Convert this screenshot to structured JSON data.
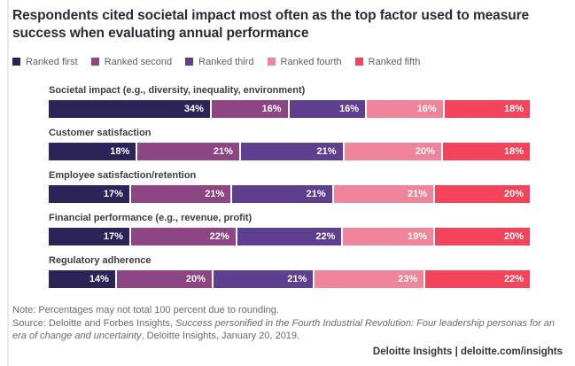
{
  "header": {
    "title": "Respondents cited societal impact most often as the top factor used to measure success when evaluating annual performance"
  },
  "legend": {
    "items": [
      {
        "label": "Ranked first",
        "color": "#2c2358"
      },
      {
        "label": "Ranked second",
        "color": "#8e4584"
      },
      {
        "label": "Ranked third",
        "color": "#5e3e8e"
      },
      {
        "label": "Ranked fourth",
        "color": "#f0849b"
      },
      {
        "label": "Ranked fifth",
        "color": "#f2455c"
      }
    ]
  },
  "chart_data": {
    "type": "bar",
    "orientation": "horizontal",
    "stacked": true,
    "unit": "%",
    "title": "Respondents cited societal impact most often as the top factor used to measure success when evaluating annual performance",
    "legend_position": "top",
    "value_labels": "inside right of each segment, white bold",
    "categories": [
      "Societal impact (e.g., diversity, inequality, environment)",
      "Customer satisfaction",
      "Employee satisfaction/retention",
      "Financial performance (e.g., revenue, profit)",
      "Regulatory adherence"
    ],
    "series": [
      {
        "name": "Ranked first",
        "color": "#2c2358",
        "values": [
          34,
          18,
          17,
          17,
          14
        ]
      },
      {
        "name": "Ranked second",
        "color": "#8e4584",
        "values": [
          16,
          21,
          21,
          22,
          20
        ]
      },
      {
        "name": "Ranked third",
        "color": "#5e3e8e",
        "values": [
          16,
          21,
          21,
          22,
          21
        ]
      },
      {
        "name": "Ranked fourth",
        "color": "#f0849b",
        "values": [
          16,
          20,
          21,
          19,
          23
        ]
      },
      {
        "name": "Ranked fifth",
        "color": "#f2455c",
        "values": [
          18,
          18,
          20,
          20,
          22
        ]
      }
    ]
  },
  "footer": {
    "note": "Note: Percentages may not total 100 percent due to rounding.",
    "source_prefix": "Source: Deloitte and Forbes Insights, ",
    "source_italic": "Success personified in the Fourth Industrial Revolution: Four leadership personas for an era of change and uncertainty",
    "source_suffix": ", Deloitte Insights, January 20, 2019.",
    "brand": "Deloitte Insights | deloitte.com/insights"
  }
}
